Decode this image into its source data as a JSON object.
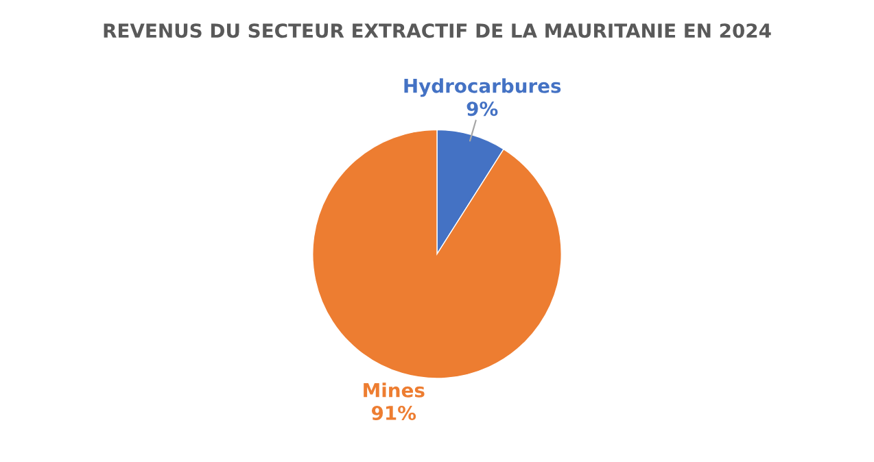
{
  "chart_data": {
    "type": "pie",
    "title": "REVENUS DU SECTEUR EXTRACTIF DE LA MAURITANIE EN 2024",
    "categories": [
      "Hydrocarbures",
      "Mines"
    ],
    "values": [
      9,
      91
    ],
    "colors": [
      "#4472c4",
      "#ed7d31"
    ],
    "value_labels": [
      "9%",
      "91%"
    ]
  }
}
